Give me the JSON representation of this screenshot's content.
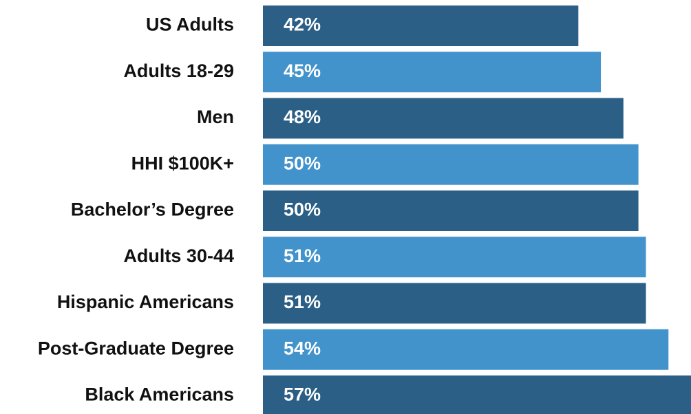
{
  "chart_data": {
    "type": "bar",
    "orientation": "horizontal",
    "categories": [
      "US Adults",
      "Adults 18-29",
      "Men",
      "HHI $100K+",
      "Bachelor’s Degree",
      "Adults 30-44",
      "Hispanic Americans",
      "Post-Graduate Degree",
      "Black Americans"
    ],
    "values": [
      42,
      45,
      48,
      50,
      50,
      51,
      51,
      54,
      57
    ],
    "value_labels": [
      "42%",
      "45%",
      "48%",
      "50%",
      "50%",
      "51%",
      "51%",
      "54%",
      "57%"
    ],
    "colors": [
      "#2b5f86",
      "#4293cc",
      "#2b5f86",
      "#4293cc",
      "#2b5f86",
      "#4293cc",
      "#2b5f86",
      "#4293cc",
      "#2b5f86"
    ]
  }
}
